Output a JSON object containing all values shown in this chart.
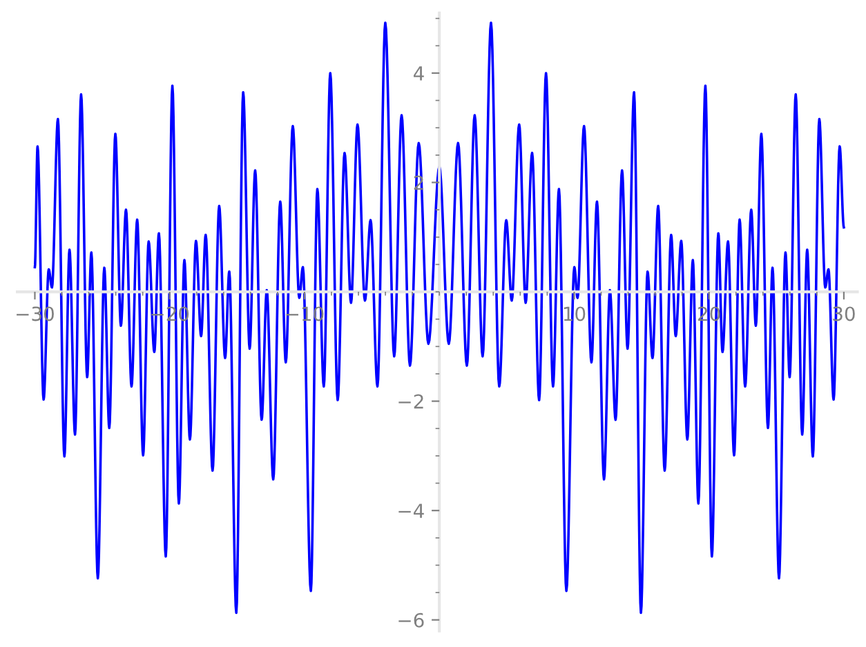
{
  "chart_data": {
    "type": "line",
    "xlim": [
      -31.3,
      31.0
    ],
    "ylim": [
      -6.2,
      5.1
    ],
    "xticks": [
      -30,
      -20,
      -10,
      10,
      20,
      30
    ],
    "yticks": [
      -6,
      -4,
      -2,
      2,
      4
    ],
    "grid": false,
    "series": [
      {
        "color": "#0000ff",
        "x": [
          -30.0,
          -29.8,
          -29.35,
          -28.97,
          -28.73,
          -28.29,
          -27.81,
          -27.43,
          -27.02,
          -26.57,
          -26.12,
          -25.81,
          -25.33,
          -24.85,
          -24.48,
          -24.03,
          -23.62,
          -23.24,
          -22.83,
          -22.41,
          -21.97,
          -21.56,
          -21.14,
          -20.8,
          -20.29,
          -19.8,
          -19.32,
          -18.91,
          -18.5,
          -18.05,
          -17.67,
          -17.33,
          -16.82,
          -16.33,
          -15.89,
          -15.58,
          -15.06,
          -14.55,
          -14.07,
          -13.66,
          -13.18,
          -12.8,
          -12.32,
          -11.8,
          -11.39,
          -10.87,
          -10.39,
          -10.12,
          -9.53,
          -9.05,
          -8.57,
          -8.09,
          -7.54,
          -7.03,
          -6.55,
          -6.07,
          -5.52,
          -5.1,
          -4.59,
          -4.01,
          -3.35,
          -2.8,
          -2.18,
          -1.53,
          -0.81,
          0.0,
          0.7,
          1.39,
          2.04,
          2.62,
          3.21,
          3.83,
          4.44,
          4.96,
          5.37,
          5.92,
          6.4,
          6.88,
          7.4,
          7.91,
          8.43,
          8.87,
          9.42,
          10.01,
          10.25,
          10.73,
          11.28,
          11.69,
          12.21,
          12.65,
          13.07,
          13.55,
          13.96,
          14.44,
          14.95,
          15.44,
          15.81,
          16.23,
          16.71,
          17.19,
          17.53,
          17.94,
          18.39,
          18.8,
          19.21,
          19.73,
          20.21,
          20.69,
          21.0,
          21.41,
          21.86,
          22.27,
          22.68,
          23.13,
          23.47,
          23.88,
          24.37,
          24.71,
          25.19,
          25.67,
          25.98,
          26.43,
          26.91,
          27.28,
          27.7,
          28.18,
          28.62,
          28.86,
          29.24,
          29.69,
          30.0
        ],
        "values": [
          0.45,
          2.66,
          -1.97,
          0.41,
          0.08,
          3.16,
          -3.01,
          0.77,
          -2.61,
          3.61,
          -1.56,
          0.72,
          -5.24,
          0.44,
          -2.49,
          2.89,
          -0.62,
          1.5,
          -1.73,
          1.32,
          -2.99,
          0.92,
          -1.1,
          1.07,
          -4.84,
          3.77,
          -3.87,
          0.58,
          -2.7,
          0.93,
          -0.81,
          1.04,
          -3.27,
          1.57,
          -1.21,
          0.37,
          -5.87,
          3.65,
          -1.04,
          2.22,
          -2.34,
          0.03,
          -3.43,
          1.65,
          -1.29,
          3.03,
          -0.11,
          0.45,
          -5.47,
          1.88,
          -1.73,
          4.0,
          -1.98,
          2.54,
          -0.2,
          3.06,
          -0.16,
          1.31,
          -1.73,
          4.92,
          -1.18,
          3.23,
          -1.35,
          2.72,
          -0.95,
          2.29,
          -0.95,
          2.72,
          -1.35,
          3.23,
          -1.18,
          4.92,
          -1.73,
          1.31,
          -0.16,
          3.06,
          -0.2,
          2.54,
          -1.98,
          4.0,
          -1.73,
          1.88,
          -5.47,
          0.45,
          -0.11,
          3.03,
          -1.29,
          1.65,
          -3.43,
          0.03,
          -2.34,
          2.22,
          -1.04,
          3.65,
          -5.87,
          0.37,
          -1.21,
          1.57,
          -3.27,
          1.04,
          -0.81,
          0.93,
          -2.7,
          0.58,
          -3.87,
          3.77,
          -4.84,
          1.07,
          -1.1,
          0.92,
          -2.99,
          1.32,
          -1.73,
          1.5,
          -0.62,
          2.89,
          -2.49,
          0.44,
          -5.24,
          0.72,
          -1.56,
          3.61,
          -2.61,
          0.77,
          -3.01,
          3.16,
          0.08,
          0.41,
          -1.97,
          2.66,
          1.18
        ]
      }
    ]
  }
}
